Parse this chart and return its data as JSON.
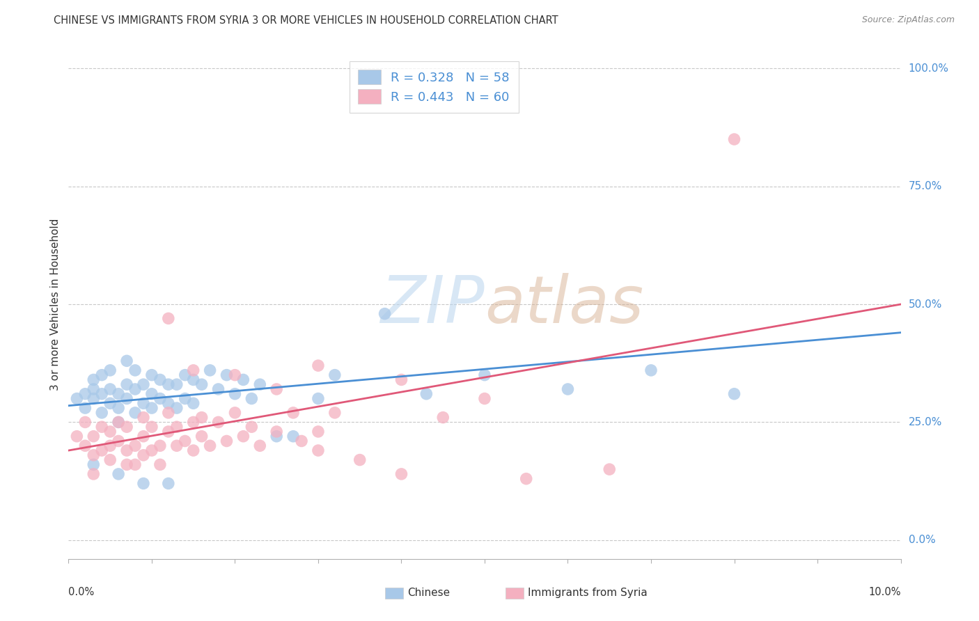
{
  "title": "CHINESE VS IMMIGRANTS FROM SYRIA 3 OR MORE VEHICLES IN HOUSEHOLD CORRELATION CHART",
  "source": "Source: ZipAtlas.com",
  "ylabel": "3 or more Vehicles in Household",
  "ytick_labels": [
    "0.0%",
    "25.0%",
    "50.0%",
    "75.0%",
    "100.0%"
  ],
  "ytick_values": [
    0.0,
    0.25,
    0.5,
    0.75,
    1.0
  ],
  "xlim": [
    0.0,
    0.1
  ],
  "ylim": [
    -0.04,
    1.04
  ],
  "chinese_color": "#a8c8e8",
  "chinese_line_color": "#4a8fd4",
  "syria_color": "#f4b0c0",
  "syria_line_color": "#e05878",
  "legend_text_color": "#4a8fd4",
  "R_chinese": 0.328,
  "N_chinese": 58,
  "R_syria": 0.443,
  "N_syria": 60,
  "chinese_scatter_x": [
    0.001,
    0.002,
    0.002,
    0.003,
    0.003,
    0.003,
    0.004,
    0.004,
    0.004,
    0.005,
    0.005,
    0.005,
    0.006,
    0.006,
    0.006,
    0.007,
    0.007,
    0.007,
    0.008,
    0.008,
    0.008,
    0.009,
    0.009,
    0.01,
    0.01,
    0.01,
    0.011,
    0.011,
    0.012,
    0.012,
    0.013,
    0.013,
    0.014,
    0.014,
    0.015,
    0.015,
    0.016,
    0.017,
    0.018,
    0.019,
    0.02,
    0.021,
    0.022,
    0.023,
    0.025,
    0.027,
    0.03,
    0.032,
    0.038,
    0.043,
    0.05,
    0.06,
    0.07,
    0.08,
    0.003,
    0.006,
    0.009,
    0.012
  ],
  "chinese_scatter_y": [
    0.3,
    0.31,
    0.28,
    0.32,
    0.3,
    0.34,
    0.27,
    0.31,
    0.35,
    0.29,
    0.32,
    0.36,
    0.28,
    0.31,
    0.25,
    0.3,
    0.33,
    0.38,
    0.27,
    0.32,
    0.36,
    0.29,
    0.33,
    0.28,
    0.31,
    0.35,
    0.3,
    0.34,
    0.29,
    0.33,
    0.28,
    0.33,
    0.3,
    0.35,
    0.29,
    0.34,
    0.33,
    0.36,
    0.32,
    0.35,
    0.31,
    0.34,
    0.3,
    0.33,
    0.22,
    0.22,
    0.3,
    0.35,
    0.48,
    0.31,
    0.35,
    0.32,
    0.36,
    0.31,
    0.16,
    0.14,
    0.12,
    0.12
  ],
  "syria_scatter_x": [
    0.001,
    0.002,
    0.002,
    0.003,
    0.003,
    0.004,
    0.004,
    0.005,
    0.005,
    0.006,
    0.006,
    0.007,
    0.007,
    0.008,
    0.008,
    0.009,
    0.009,
    0.01,
    0.01,
    0.011,
    0.011,
    0.012,
    0.012,
    0.013,
    0.013,
    0.014,
    0.015,
    0.015,
    0.016,
    0.016,
    0.017,
    0.018,
    0.019,
    0.02,
    0.021,
    0.022,
    0.023,
    0.025,
    0.027,
    0.028,
    0.03,
    0.03,
    0.032,
    0.04,
    0.045,
    0.05,
    0.003,
    0.005,
    0.007,
    0.009,
    0.012,
    0.015,
    0.02,
    0.025,
    0.03,
    0.035,
    0.04,
    0.055,
    0.065,
    0.08
  ],
  "syria_scatter_y": [
    0.22,
    0.2,
    0.25,
    0.18,
    0.22,
    0.24,
    0.19,
    0.23,
    0.17,
    0.21,
    0.25,
    0.19,
    0.24,
    0.2,
    0.16,
    0.22,
    0.26,
    0.19,
    0.24,
    0.2,
    0.16,
    0.23,
    0.27,
    0.2,
    0.24,
    0.21,
    0.25,
    0.19,
    0.22,
    0.26,
    0.2,
    0.25,
    0.21,
    0.27,
    0.22,
    0.24,
    0.2,
    0.23,
    0.27,
    0.21,
    0.23,
    0.19,
    0.27,
    0.34,
    0.26,
    0.3,
    0.14,
    0.2,
    0.16,
    0.18,
    0.47,
    0.36,
    0.35,
    0.32,
    0.37,
    0.17,
    0.14,
    0.13,
    0.15,
    0.85
  ]
}
